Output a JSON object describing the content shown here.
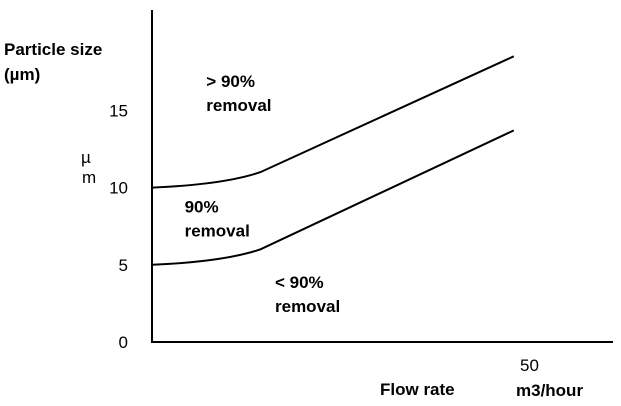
{
  "chart_data": {
    "type": "line",
    "title": "",
    "ylabel": [
      "Particle size",
      "(µm)"
    ],
    "y_unit_side_label": [
      "µ",
      "m"
    ],
    "xlabel": "Flow rate",
    "x_tick_labels": [
      "50",
      "m3/hour"
    ],
    "y_ticks": [
      {
        "value": 0,
        "label": "0"
      },
      {
        "value": 5,
        "label": "5"
      },
      {
        "value": 10,
        "label": "10"
      },
      {
        "value": 15,
        "label": "15"
      }
    ],
    "xlim": [
      0,
      55
    ],
    "ylim": [
      0,
      21.5
    ],
    "grid": false,
    "legend": "none",
    "series": [
      {
        "x": [
          0,
          10,
          15,
          50
        ],
        "y": [
          10,
          10.2,
          11,
          18.5
        ]
      },
      {
        "x": [
          0,
          10,
          15,
          50
        ],
        "y": [
          5,
          5.2,
          6,
          13.7
        ]
      }
    ],
    "annotations": [
      {
        "lines": [
          "> 90%",
          "removal"
        ],
        "x": 7.5,
        "y": 16.5
      },
      {
        "lines": [
          "90%",
          "removal"
        ],
        "x": 4.5,
        "y": 8.4
      },
      {
        "lines": [
          "< 90%",
          "removal"
        ],
        "x": 17,
        "y": 3.5
      }
    ]
  }
}
